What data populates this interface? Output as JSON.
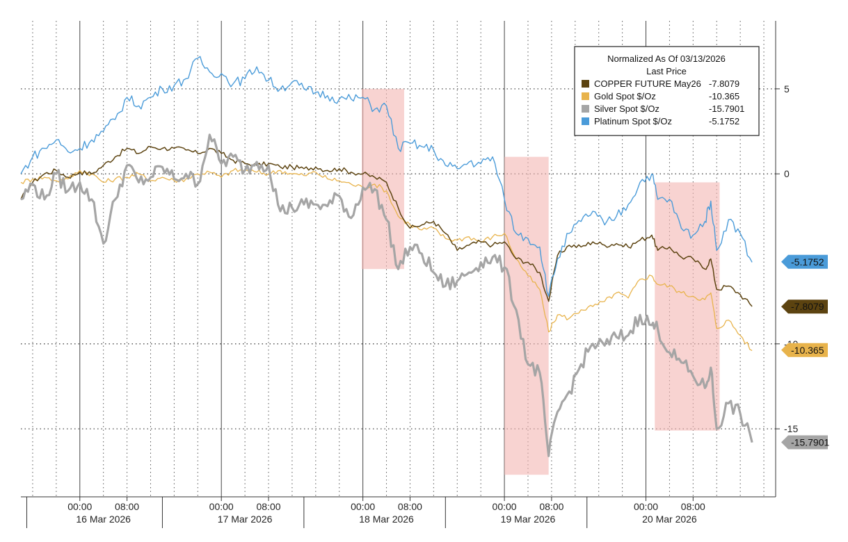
{
  "chart_data": {
    "type": "line",
    "title": "Normalized As Of 03/13/2026",
    "subtitle": "Last Price",
    "ylim": [
      -19,
      9
    ],
    "y_ticks": [
      5,
      0,
      -10,
      -15
    ],
    "y_tick_labels": [
      "5",
      "0",
      "-10",
      "-15"
    ],
    "x_range_hours": [
      -10,
      118
    ],
    "x_ticks": [
      {
        "hour": 0,
        "label": "00:00"
      },
      {
        "hour": 8,
        "label": "08:00"
      },
      {
        "hour": 24,
        "label": "00:00"
      },
      {
        "hour": 32,
        "label": "08:00"
      },
      {
        "hour": 48,
        "label": "00:00"
      },
      {
        "hour": 56,
        "label": "08:00"
      },
      {
        "hour": 72,
        "label": "00:00"
      },
      {
        "hour": 80,
        "label": "08:00"
      },
      {
        "hour": 96,
        "label": "00:00"
      },
      {
        "hour": 104,
        "label": "08:00"
      }
    ],
    "date_labels": [
      {
        "hour": 4,
        "label": "16 Mar 2026"
      },
      {
        "hour": 28,
        "label": "17 Mar 2026"
      },
      {
        "hour": 52,
        "label": "18 Mar 2026"
      },
      {
        "hour": 76,
        "label": "19 Mar 2026"
      },
      {
        "hour": 100,
        "label": "20 Mar 2026"
      }
    ],
    "day_separators": [
      -9,
      14,
      38,
      62,
      86
    ],
    "highlight_bands": [
      {
        "x0": 47.8,
        "x1": 55,
        "y0": 5,
        "y1": -5.6
      },
      {
        "x0": 72,
        "x1": 79.5,
        "y0": 1,
        "y1": -17.7
      },
      {
        "x0": 97.5,
        "x1": 108.5,
        "y0": -0.5,
        "y1": -15.1
      }
    ],
    "series": [
      {
        "name": "COPPER FUTURE May26",
        "last": -7.8079,
        "last_label": "-7.8079",
        "color": "#5c4310",
        "points": [
          [
            -10,
            -1.5
          ],
          [
            -8,
            -0.5
          ],
          [
            -6,
            0
          ],
          [
            -4,
            0.2
          ],
          [
            -2,
            -0.2
          ],
          [
            0,
            0.1
          ],
          [
            2,
            0
          ],
          [
            4,
            0.5
          ],
          [
            6,
            1
          ],
          [
            8,
            1.5
          ],
          [
            10,
            1.2
          ],
          [
            12,
            1.6
          ],
          [
            14,
            1.5
          ],
          [
            16,
            1.5
          ],
          [
            18,
            1.4
          ],
          [
            20,
            1.2
          ],
          [
            22,
            1.5
          ],
          [
            24,
            1.2
          ],
          [
            26,
            0.8
          ],
          [
            28,
            0.6
          ],
          [
            30,
            0.5
          ],
          [
            32,
            0.6
          ],
          [
            34,
            0.4
          ],
          [
            36,
            0.4
          ],
          [
            38,
            0.3
          ],
          [
            40,
            0.4
          ],
          [
            42,
            0.2
          ],
          [
            44,
            0.3
          ],
          [
            46,
            0.1
          ],
          [
            48,
            0
          ],
          [
            50,
            -0.2
          ],
          [
            52,
            -0.5
          ],
          [
            54,
            -2
          ],
          [
            56,
            -3.2
          ],
          [
            58,
            -3
          ],
          [
            60,
            -2.8
          ],
          [
            62,
            -3.5
          ],
          [
            64,
            -4.5
          ],
          [
            66,
            -4.2
          ],
          [
            68,
            -4
          ],
          [
            70,
            -4.2
          ],
          [
            72,
            -4
          ],
          [
            74,
            -5
          ],
          [
            76,
            -5.2
          ],
          [
            78,
            -5.8
          ],
          [
            79.5,
            -7.5
          ],
          [
            81,
            -4.8
          ],
          [
            83,
            -4.2
          ],
          [
            85,
            -4.3
          ],
          [
            87,
            -4
          ],
          [
            89,
            -4.2
          ],
          [
            91,
            -4.1
          ],
          [
            93,
            -4.3
          ],
          [
            95,
            -3.9
          ],
          [
            97,
            -3.6
          ],
          [
            98,
            -4.5
          ],
          [
            100,
            -4.3
          ],
          [
            102,
            -4.9
          ],
          [
            104,
            -5
          ],
          [
            106,
            -5.6
          ],
          [
            107,
            -5
          ],
          [
            108,
            -6.8
          ],
          [
            110,
            -6.6
          ],
          [
            112,
            -7.1
          ],
          [
            114,
            -7.8
          ]
        ]
      },
      {
        "name": "Gold Spot $/Oz",
        "last": -10.365,
        "last_label": "-10.365",
        "color": "#e8b34b",
        "points": [
          [
            -10,
            -0.5
          ],
          [
            -8,
            -0.3
          ],
          [
            -6,
            -0.2
          ],
          [
            -4,
            -0.4
          ],
          [
            -2,
            -0.3
          ],
          [
            0,
            0.2
          ],
          [
            2,
            0
          ],
          [
            4,
            -0.5
          ],
          [
            6,
            -0.3
          ],
          [
            8,
            -0.2
          ],
          [
            10,
            0
          ],
          [
            12,
            -0.4
          ],
          [
            14,
            -0.2
          ],
          [
            16,
            -0.4
          ],
          [
            18,
            -0.3
          ],
          [
            20,
            0
          ],
          [
            22,
            0.1
          ],
          [
            24,
            -0.2
          ],
          [
            26,
            0.2
          ],
          [
            28,
            0.2
          ],
          [
            30,
            0.1
          ],
          [
            32,
            0
          ],
          [
            34,
            0.2
          ],
          [
            36,
            0
          ],
          [
            38,
            -0.1
          ],
          [
            40,
            0.1
          ],
          [
            42,
            -0.3
          ],
          [
            44,
            -0.4
          ],
          [
            46,
            -0.6
          ],
          [
            48,
            -0.8
          ],
          [
            50,
            -0.6
          ],
          [
            52,
            -1
          ],
          [
            54,
            -2.5
          ],
          [
            56,
            -3
          ],
          [
            58,
            -3.3
          ],
          [
            60,
            -3.2
          ],
          [
            62,
            -3.8
          ],
          [
            64,
            -3.9
          ],
          [
            66,
            -3.7
          ],
          [
            68,
            -4
          ],
          [
            70,
            -3.7
          ],
          [
            72,
            -3.5
          ],
          [
            74,
            -5
          ],
          [
            76,
            -6
          ],
          [
            78,
            -6.8
          ],
          [
            79.5,
            -9.3
          ],
          [
            81,
            -8.3
          ],
          [
            83,
            -8.5
          ],
          [
            85,
            -8
          ],
          [
            87,
            -7.8
          ],
          [
            89,
            -7.5
          ],
          [
            91,
            -7
          ],
          [
            93,
            -7.3
          ],
          [
            95,
            -6.2
          ],
          [
            97,
            -6
          ],
          [
            98,
            -6.5
          ],
          [
            100,
            -6.6
          ],
          [
            102,
            -7
          ],
          [
            104,
            -7.2
          ],
          [
            106,
            -7.4
          ],
          [
            107,
            -7
          ],
          [
            108,
            -9.1
          ],
          [
            110,
            -8.6
          ],
          [
            112,
            -9.5
          ],
          [
            114,
            -10.4
          ]
        ]
      },
      {
        "name": "Silver Spot $/Oz",
        "last": -15.7901,
        "last_label": "-15.7901",
        "color": "#a5a5a5",
        "points": [
          [
            -10,
            -1.5
          ],
          [
            -8,
            -0.6
          ],
          [
            -6,
            -1.5
          ],
          [
            -4,
            0
          ],
          [
            -2,
            -1
          ],
          [
            0,
            -0.5
          ],
          [
            2,
            -1.5
          ],
          [
            4,
            -4.1
          ],
          [
            6,
            -1.5
          ],
          [
            8,
            0.5
          ],
          [
            10,
            -0.5
          ],
          [
            12,
            -0.2
          ],
          [
            14,
            0.4
          ],
          [
            16,
            -0.3
          ],
          [
            18,
            0
          ],
          [
            20,
            -0.6
          ],
          [
            22,
            2.3
          ],
          [
            24,
            0.6
          ],
          [
            26,
            1
          ],
          [
            28,
            0.2
          ],
          [
            30,
            0.7
          ],
          [
            32,
            0.5
          ],
          [
            34,
            -2.2
          ],
          [
            36,
            -2
          ],
          [
            38,
            -1.8
          ],
          [
            40,
            -1.8
          ],
          [
            42,
            -1.9
          ],
          [
            44,
            -1.3
          ],
          [
            46,
            -2.6
          ],
          [
            48,
            -0.8
          ],
          [
            50,
            -0.9
          ],
          [
            52,
            -2.7
          ],
          [
            54,
            -5.6
          ],
          [
            56,
            -4.3
          ],
          [
            58,
            -4.7
          ],
          [
            60,
            -5.8
          ],
          [
            62,
            -6.6
          ],
          [
            64,
            -6.3
          ],
          [
            66,
            -5.8
          ],
          [
            68,
            -5.2
          ],
          [
            70,
            -4.9
          ],
          [
            72,
            -5.5
          ],
          [
            74,
            -8
          ],
          [
            76,
            -11.2
          ],
          [
            78,
            -11.7
          ],
          [
            79.5,
            -16.6
          ],
          [
            81,
            -14
          ],
          [
            83,
            -12.8
          ],
          [
            85,
            -11.2
          ],
          [
            87,
            -10
          ],
          [
            89,
            -10.1
          ],
          [
            91,
            -9.6
          ],
          [
            93,
            -9.5
          ],
          [
            95,
            -8.3
          ],
          [
            97,
            -8.9
          ],
          [
            98,
            -9.1
          ],
          [
            100,
            -10.5
          ],
          [
            102,
            -11.1
          ],
          [
            104,
            -11.9
          ],
          [
            106,
            -12.6
          ],
          [
            107,
            -11.4
          ],
          [
            108,
            -15
          ],
          [
            110,
            -13.5
          ],
          [
            112,
            -14.1
          ],
          [
            114,
            -15.8
          ]
        ]
      },
      {
        "name": "Platinum Spot $/Oz",
        "last": -5.1752,
        "last_label": "-5.1752",
        "color": "#4a9bd9",
        "points": [
          [
            -10,
            0
          ],
          [
            -8,
            1
          ],
          [
            -6,
            1.5
          ],
          [
            -4,
            2
          ],
          [
            -2,
            1.3
          ],
          [
            0,
            1.5
          ],
          [
            2,
            2
          ],
          [
            4,
            2.5
          ],
          [
            6,
            3.2
          ],
          [
            8,
            4.5
          ],
          [
            10,
            4
          ],
          [
            12,
            4.5
          ],
          [
            14,
            5
          ],
          [
            16,
            5.2
          ],
          [
            18,
            5.6
          ],
          [
            20,
            6.8
          ],
          [
            22,
            6
          ],
          [
            24,
            5.9
          ],
          [
            26,
            5.3
          ],
          [
            28,
            5.6
          ],
          [
            30,
            6.3
          ],
          [
            32,
            5.5
          ],
          [
            34,
            5
          ],
          [
            36,
            5.4
          ],
          [
            38,
            5
          ],
          [
            40,
            4.8
          ],
          [
            42,
            4.6
          ],
          [
            44,
            4.4
          ],
          [
            46,
            4.4
          ],
          [
            48,
            4.5
          ],
          [
            50,
            3.8
          ],
          [
            52,
            4
          ],
          [
            54,
            1.5
          ],
          [
            56,
            1.8
          ],
          [
            58,
            1.6
          ],
          [
            60,
            1.4
          ],
          [
            62,
            0.5
          ],
          [
            64,
            0.3
          ],
          [
            66,
            0.7
          ],
          [
            68,
            0.6
          ],
          [
            70,
            1
          ],
          [
            72,
            -1.5
          ],
          [
            74,
            -3.5
          ],
          [
            76,
            -3.8
          ],
          [
            78,
            -4.3
          ],
          [
            79.5,
            -7.2
          ],
          [
            81,
            -5
          ],
          [
            83,
            -3.5
          ],
          [
            85,
            -2.8
          ],
          [
            87,
            -2.2
          ],
          [
            89,
            -3
          ],
          [
            91,
            -2.5
          ],
          [
            93,
            -1.8
          ],
          [
            95,
            -0.5
          ],
          [
            97,
            0
          ],
          [
            98,
            -1.5
          ],
          [
            100,
            -1.5
          ],
          [
            102,
            -3.2
          ],
          [
            104,
            -3.6
          ],
          [
            106,
            -2.8
          ],
          [
            107,
            -1.6
          ],
          [
            108,
            -4.5
          ],
          [
            110,
            -2.7
          ],
          [
            112,
            -3.5
          ],
          [
            114,
            -5.2
          ]
        ]
      }
    ]
  }
}
